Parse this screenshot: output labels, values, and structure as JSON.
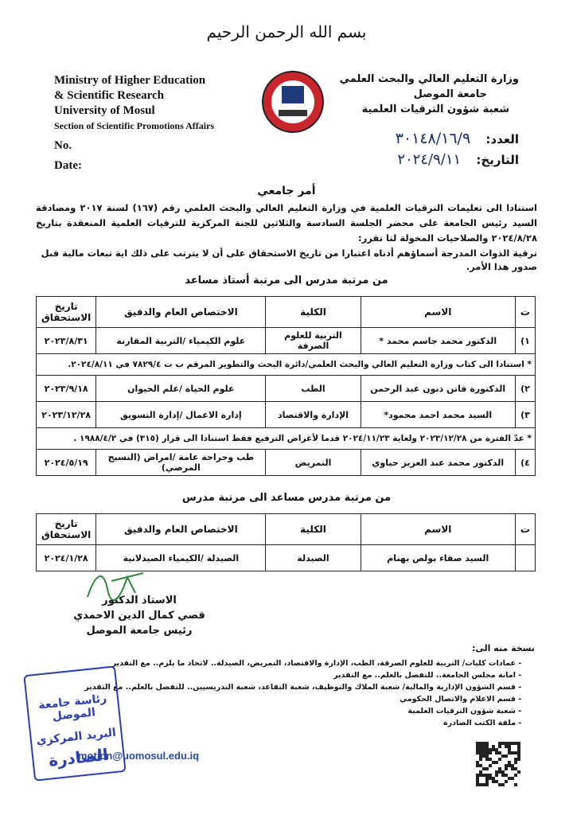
{
  "header": {
    "basmala": "بسم الله الرحمن الرحيم",
    "english": [
      "Ministry of Higher Education",
      "& Scientific Research",
      "University of Mosul",
      "Section of Scientific Promotions Affairs"
    ],
    "no_label": "No.",
    "date_label": "Date:",
    "arabic": [
      "وزارة التعليم العالي والبحث العلمي",
      "جامعة الموصل",
      "شعبة شؤون الترقيات العلمية"
    ],
    "number_label": "العدد:",
    "number": "٣٠١٤٨/١٦/٩",
    "arabic_date_label": "التاريخ:",
    "arabic_date": "٢٠٢٤/٩/١١"
  },
  "title": "أمر جامعي",
  "paragraphs": [
    "استنادا الى تعليمات الترقيات العلمية في وزارة التعليم العالي والبحث العلمي رقم (١٦٧) لسنة ٢٠١٧ ومصادقة السيد رئيس الجامعة على محضر الجلسة السادسة والثلاثين للجنة المركزية للترقيات العلمية المنعقدة بتاريخ ٢٠٢٤/٨/٢٨ والصلاحيات المخولة لنا تقرر:",
    "ترقية الذوات المدرجة أسماؤهم أدناه اعتبارا من تاريخ الاستحقاق على أن لا يترتب على ذلك اية تبعات مالية قبل صدور هذا الأمر."
  ],
  "tables": [
    {
      "heading": "من مرتبة مدرس الى مرتبة أستاذ مساعد",
      "header": [
        "ت",
        "الاسم",
        "الكلية",
        "الاختصاص العام والدقيق",
        "تاريخ الاستحقاق"
      ],
      "rows": [
        {
          "cells": [
            "١)",
            "الدكتور محمد جاسم محمد *",
            "التربية للعلوم الصرفة",
            "علوم الكيمياء /التربية المقارنة",
            "٢٠٢٣/٨/٣١"
          ]
        },
        {
          "note": "* استنادا الى كتاب وزارة التعليم العالي والبحث العلمي/دائرة البحث والتطوير المرقم ب ت ٧٨٢٩/٤ في ٢٠٢٤/٨/١١."
        },
        {
          "cells": [
            "٢)",
            "الدكتورة فاتن ذنون عبد الرحمن",
            "الطب",
            "علوم الحياة /علم الحيوان",
            "٢٠٢٣/٩/١٨"
          ]
        },
        {
          "cells": [
            "٣)",
            "السيد محمد احمد محمود*",
            "الإدارة والاقتصاد",
            "إدارة الاعمال /إدارة التسويق",
            "٢٠٢٣/١٢/٢٨"
          ]
        },
        {
          "note": "* عدّ الفترة من ٢٠٢٣/١٢/٢٨ ولغاية ٢٠٢٤/١١/٢٣ قدما لأغراض الترفيع فقط استنادا الى قرار (٣١٥) في ١٩٨٨/٤/٢ ."
        },
        {
          "cells": [
            "٤)",
            "الدكتور محمد عبد العزيز حياوي",
            "التمريض",
            "طب وجراحة عامة /امراض (النسيج المرضي)",
            "٢٠٢٤/٥/١٩"
          ]
        }
      ]
    },
    {
      "heading": "من مرتبة مدرس مساعد الى مرتبة مدرس",
      "header": [
        "ت",
        "الاسم",
        "الكلية",
        "الاختصاص العام والدقيق",
        "تاريخ الاستحقاق"
      ],
      "rows": [
        {
          "cells": [
            null,
            "السيد صفاء بولص بهنام",
            "الصيدلة",
            "الصيدلة /الكيمياء الصيدلانية",
            "٢٠٢٤/١/٢٨"
          ]
        }
      ]
    }
  ],
  "signature": [
    "الاستاذ الدكتور",
    "قصي كمال الدين الاحمدي",
    "رئيس جامعة الموصل"
  ],
  "copies": {
    "label": "نسخة منه الى:",
    "items": [
      "عمادات كليات/ التربية للعلوم الصرفة، الطب، الإدارة والاقتصاد، التمريض، الصيدلة.. لاتخاذ ما يلزم.. مع التقدير",
      "امانة مجلس الجامعة.. للتفضل بالعلم.. مع التقدير",
      "قسم الشؤون الإدارية والمالية/ شعبة الملاك والتوظيف، شعبة التقاعد، شعبة التدريسيين.. للتفضل بالعلم.. مع التقدير",
      "قسم الاعلام والاتصال الحكومي",
      "شعبة شؤون الترقيات العلمية",
      "ملفة الكتب الصادرة"
    ]
  },
  "stamp": [
    "رئاسة جامعة الموصل",
    "البريد المركزي",
    "الصادرة"
  ],
  "footer": {
    "email": "motion@uomosul.edu.iq"
  }
}
